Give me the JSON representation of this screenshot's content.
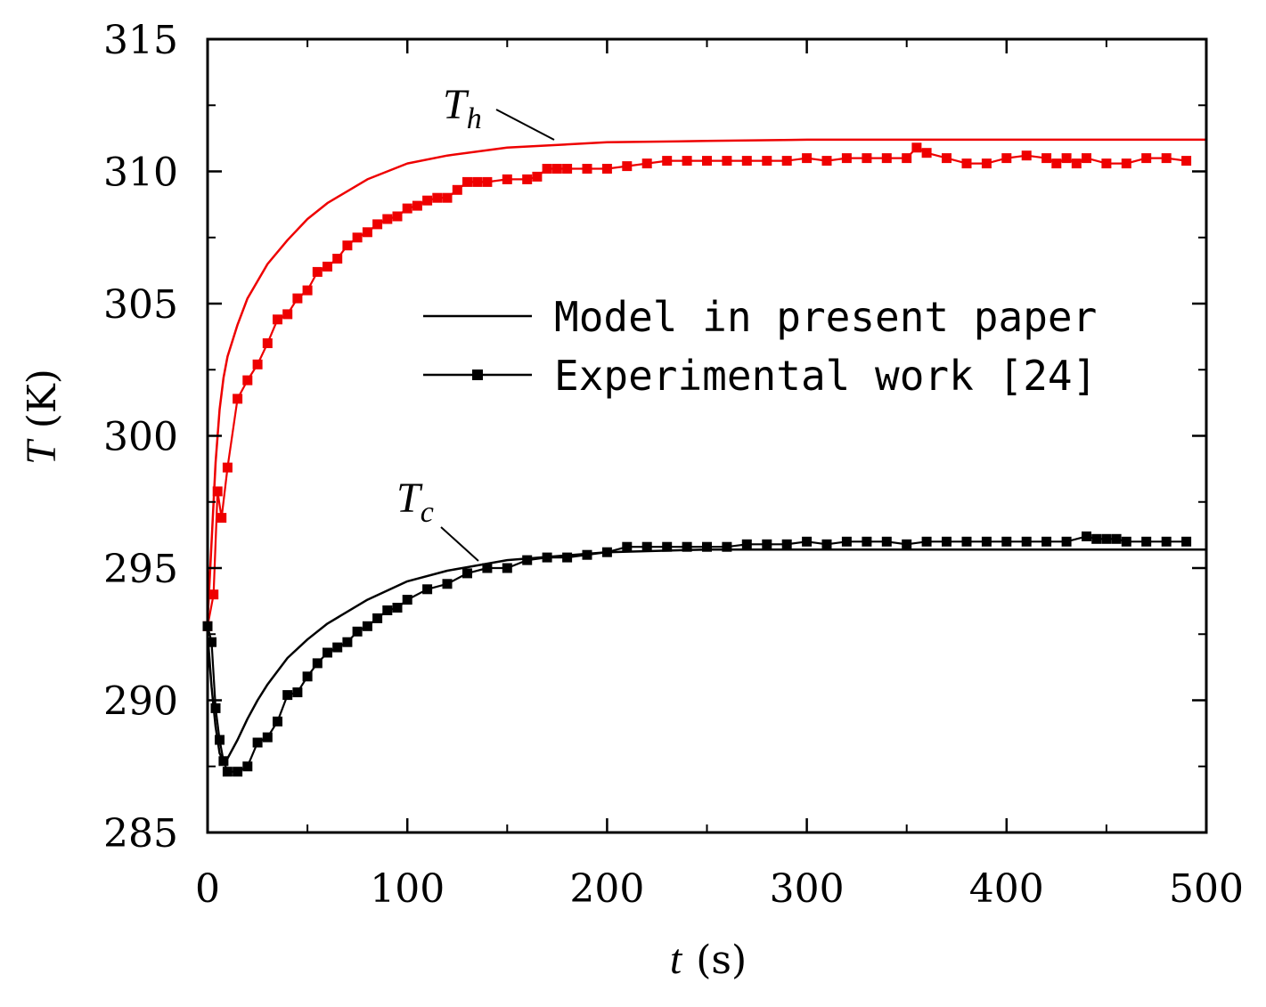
{
  "chart_data": {
    "type": "line",
    "title": "",
    "xlabel_var": "t",
    "xlabel_unit": "(s)",
    "ylabel_var": "T",
    "ylabel_unit": "(K)",
    "xlim": [
      0,
      500
    ],
    "ylim": [
      285,
      315
    ],
    "xticks": [
      0,
      100,
      200,
      300,
      400,
      500
    ],
    "yticks": [
      285,
      290,
      295,
      300,
      305,
      310,
      315
    ],
    "legend": {
      "position": "center-right",
      "entries": [
        {
          "label": "Model in present paper",
          "style": "line"
        },
        {
          "label": "Experimental work [24]",
          "style": "line-square-marker"
        }
      ]
    },
    "annotations": [
      {
        "main": "T",
        "sub": "h",
        "points_to_series": "Th model"
      },
      {
        "main": "T",
        "sub": "c",
        "points_to_series": "Tc model"
      }
    ],
    "colors": {
      "hot": "#ee0000",
      "cold": "#000000"
    },
    "series": [
      {
        "name": "Th model",
        "kind": "model",
        "color": "#ee0000",
        "x": [
          0,
          2,
          4,
          6,
          8,
          10,
          15,
          20,
          30,
          40,
          50,
          60,
          80,
          100,
          120,
          150,
          200,
          250,
          300,
          400,
          500
        ],
        "y": [
          293.0,
          296.0,
          299.0,
          301.0,
          302.2,
          303.0,
          304.2,
          305.2,
          306.5,
          307.4,
          308.2,
          308.8,
          309.7,
          310.3,
          310.6,
          310.9,
          311.1,
          311.15,
          311.2,
          311.2,
          311.2
        ]
      },
      {
        "name": "Th experimental",
        "kind": "experimental",
        "color": "#ee0000",
        "x": [
          0,
          3,
          5,
          7,
          10,
          15,
          20,
          25,
          30,
          35,
          40,
          45,
          50,
          55,
          60,
          65,
          70,
          75,
          80,
          85,
          90,
          95,
          100,
          105,
          110,
          115,
          120,
          125,
          130,
          135,
          140,
          150,
          160,
          165,
          170,
          175,
          180,
          190,
          200,
          210,
          220,
          230,
          240,
          250,
          260,
          270,
          280,
          290,
          300,
          310,
          320,
          330,
          340,
          350,
          355,
          360,
          370,
          380,
          390,
          400,
          410,
          420,
          425,
          430,
          435,
          440,
          450,
          460,
          470,
          480,
          490
        ],
        "y": [
          292.8,
          294.0,
          297.9,
          296.9,
          298.8,
          301.4,
          302.1,
          302.7,
          303.5,
          304.4,
          304.6,
          305.2,
          305.5,
          306.2,
          306.4,
          306.7,
          307.2,
          307.5,
          307.7,
          308.0,
          308.2,
          308.3,
          308.6,
          308.7,
          308.9,
          309.0,
          309.0,
          309.3,
          309.6,
          309.6,
          309.6,
          309.7,
          309.7,
          309.8,
          310.1,
          310.1,
          310.1,
          310.1,
          310.1,
          310.2,
          310.3,
          310.4,
          310.4,
          310.4,
          310.4,
          310.4,
          310.4,
          310.4,
          310.5,
          310.4,
          310.5,
          310.5,
          310.5,
          310.5,
          310.9,
          310.7,
          310.5,
          310.3,
          310.3,
          310.5,
          310.6,
          310.5,
          310.3,
          310.5,
          310.3,
          310.5,
          310.3,
          310.3,
          310.5,
          310.5,
          310.4
        ]
      },
      {
        "name": "Tc model",
        "kind": "model",
        "color": "#000000",
        "x": [
          0,
          2,
          4,
          6,
          8,
          10,
          15,
          20,
          25,
          30,
          40,
          50,
          60,
          80,
          100,
          120,
          150,
          200,
          250,
          300,
          400,
          500
        ],
        "y": [
          292.5,
          290.5,
          289.0,
          288.0,
          287.7,
          287.8,
          288.5,
          289.3,
          290.0,
          290.6,
          291.6,
          292.3,
          292.9,
          293.8,
          294.5,
          294.9,
          295.3,
          295.6,
          295.7,
          295.7,
          295.7,
          295.7
        ]
      },
      {
        "name": "Tc experimental",
        "kind": "experimental",
        "color": "#000000",
        "x": [
          0,
          2,
          4,
          6,
          8,
          10,
          15,
          20,
          25,
          30,
          35,
          40,
          45,
          50,
          55,
          60,
          65,
          70,
          75,
          80,
          85,
          90,
          95,
          100,
          110,
          120,
          130,
          140,
          150,
          160,
          170,
          180,
          190,
          200,
          210,
          220,
          230,
          240,
          250,
          260,
          270,
          280,
          290,
          300,
          310,
          320,
          330,
          340,
          350,
          360,
          370,
          380,
          390,
          400,
          410,
          420,
          430,
          440,
          445,
          450,
          455,
          460,
          470,
          480,
          490
        ],
        "y": [
          292.8,
          292.2,
          289.7,
          288.5,
          287.7,
          287.3,
          287.3,
          287.5,
          288.4,
          288.6,
          289.2,
          290.2,
          290.3,
          290.9,
          291.4,
          291.8,
          292.0,
          292.2,
          292.6,
          292.8,
          293.1,
          293.4,
          293.5,
          293.8,
          294.2,
          294.4,
          294.8,
          295.0,
          295.0,
          295.3,
          295.4,
          295.4,
          295.5,
          295.6,
          295.8,
          295.8,
          295.8,
          295.8,
          295.8,
          295.8,
          295.9,
          295.9,
          295.9,
          296.0,
          295.9,
          296.0,
          296.0,
          296.0,
          295.9,
          296.0,
          296.0,
          296.0,
          296.0,
          296.0,
          296.0,
          296.0,
          296.0,
          296.2,
          296.1,
          296.1,
          296.1,
          296.0,
          296.0,
          296.0,
          296.0
        ]
      }
    ]
  }
}
